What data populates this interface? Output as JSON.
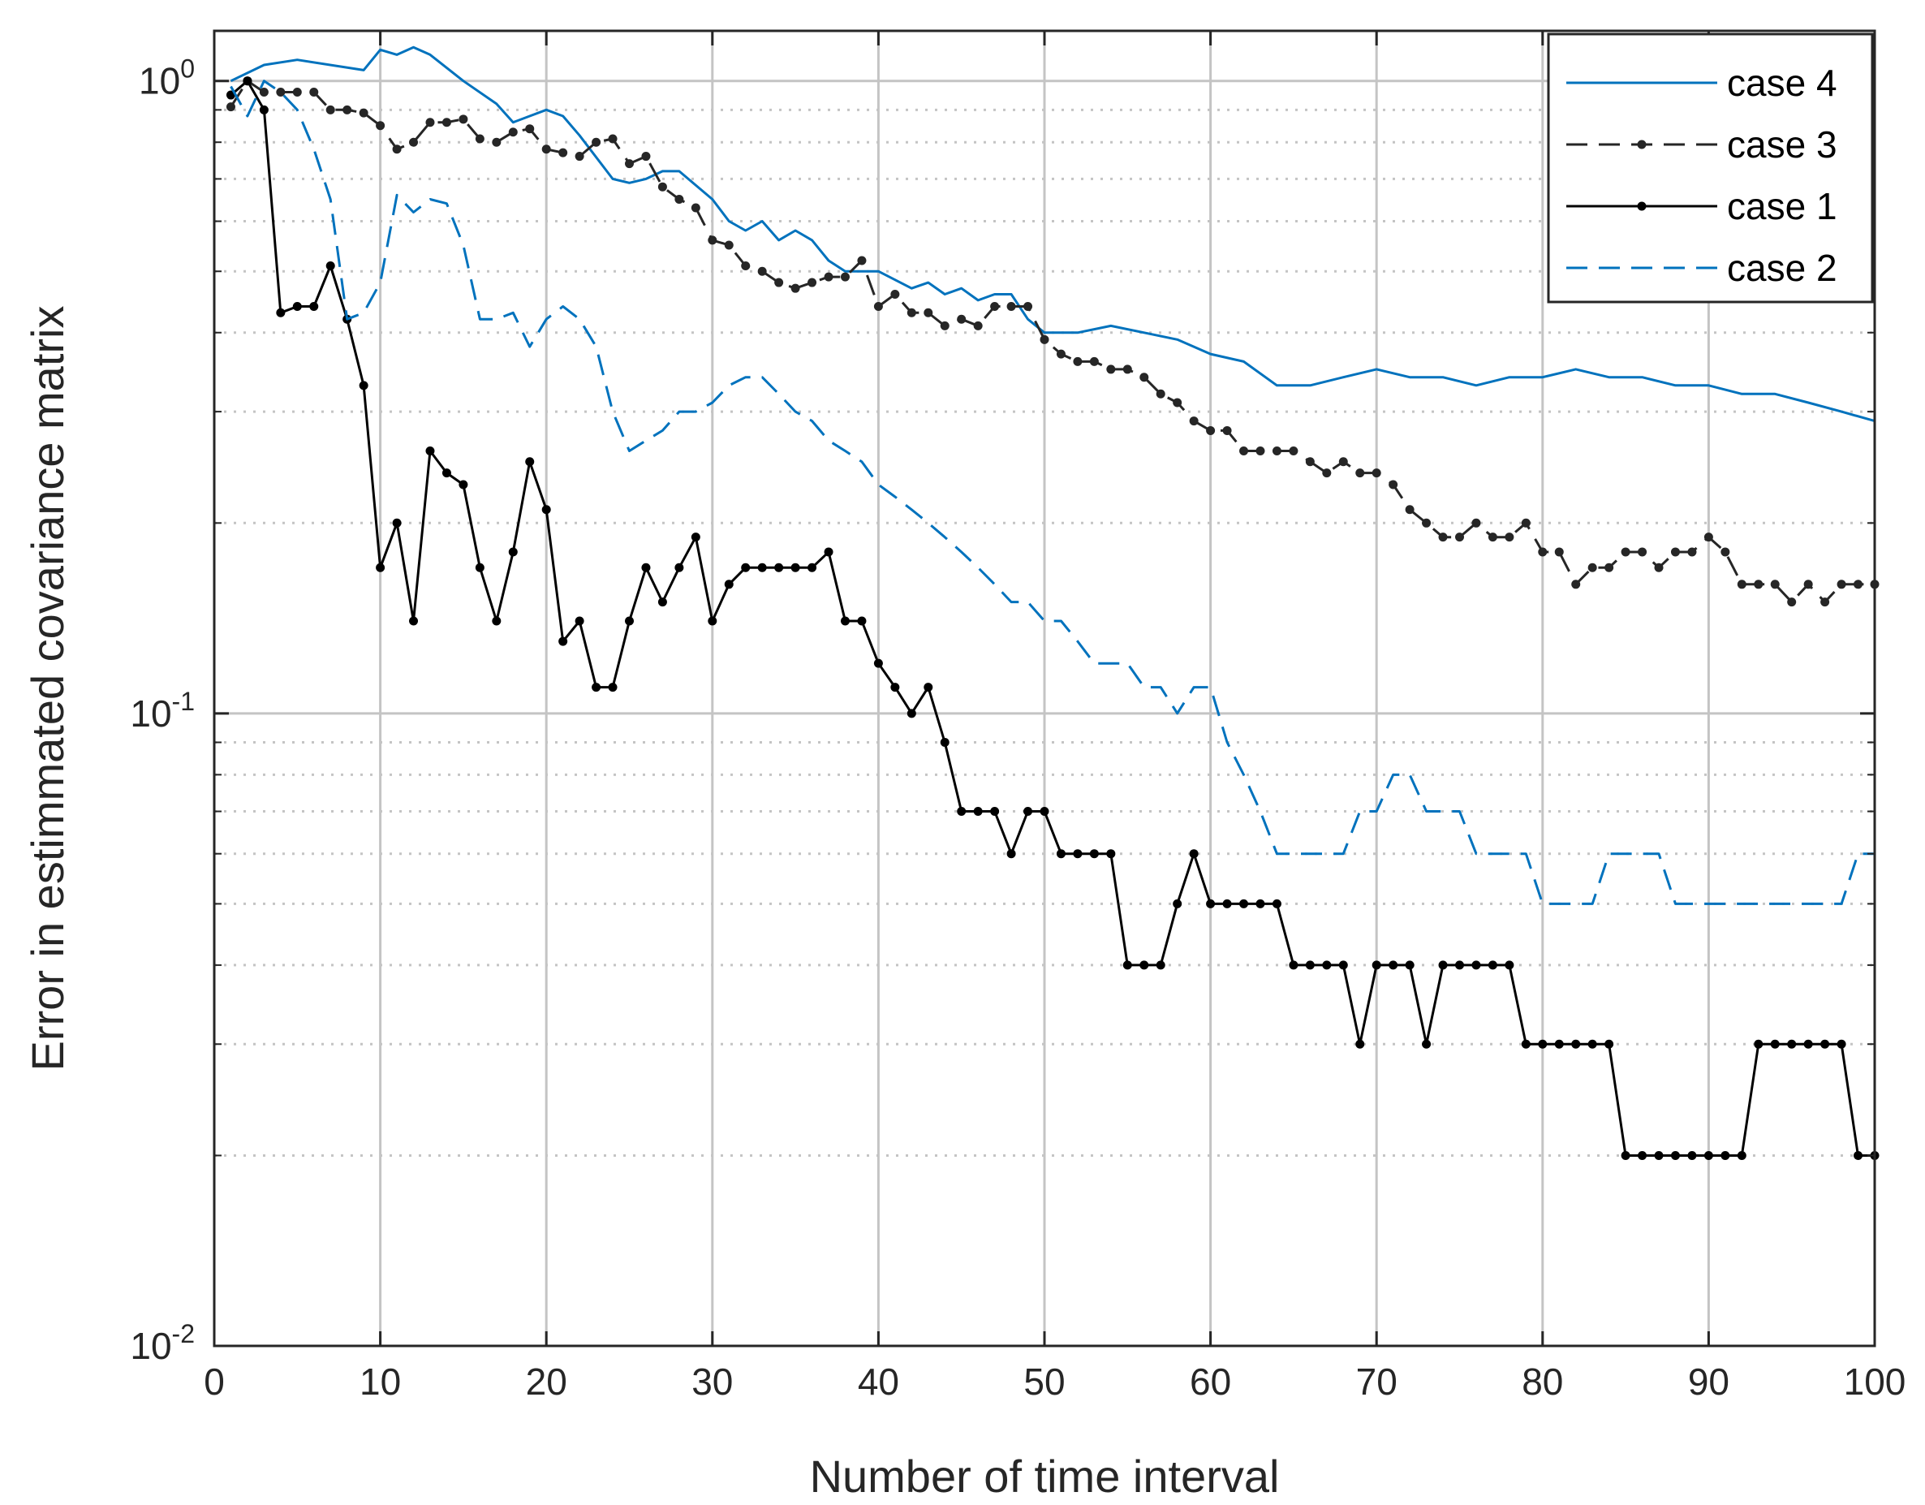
{
  "chart_data": {
    "type": "line",
    "title": "",
    "xlabel": "Number of time interval",
    "ylabel": "Error in estimmated covariance matrix",
    "xlim": [
      0,
      100
    ],
    "ylim": [
      0.01,
      1.2
    ],
    "yscale": "log",
    "grid": true,
    "legend_position": "top-right",
    "x_ticks": [
      0,
      10,
      20,
      30,
      40,
      50,
      60,
      70,
      80,
      90,
      100
    ],
    "y_ticks": [
      {
        "value": 0.01,
        "base": "10",
        "exp": "-2"
      },
      {
        "value": 0.1,
        "base": "10",
        "exp": "-1"
      },
      {
        "value": 1,
        "base": "10",
        "exp": "0"
      }
    ],
    "series": [
      {
        "name": "case 4",
        "color": "#0072BD",
        "dash": "solid",
        "markers": false,
        "x": [
          1,
          3,
          5,
          9,
          10,
          11,
          12,
          13,
          15,
          17,
          18,
          19,
          20,
          21,
          22,
          24,
          25,
          26,
          27,
          28,
          30,
          31,
          32,
          33,
          34,
          35,
          36,
          37,
          38,
          39,
          40,
          42,
          43,
          44,
          45,
          46,
          47,
          48,
          49,
          50,
          52,
          54,
          56,
          58,
          60,
          62,
          64,
          66,
          68,
          70,
          72,
          74,
          76,
          78,
          80,
          82,
          84,
          86,
          88,
          90,
          92,
          94,
          96,
          98,
          100
        ],
        "y": [
          1.0,
          1.06,
          1.08,
          1.04,
          1.12,
          1.1,
          1.13,
          1.1,
          1.0,
          0.92,
          0.86,
          0.88,
          0.9,
          0.88,
          0.82,
          0.7,
          0.69,
          0.7,
          0.72,
          0.72,
          0.65,
          0.6,
          0.58,
          0.6,
          0.56,
          0.58,
          0.56,
          0.52,
          0.5,
          0.5,
          0.5,
          0.47,
          0.48,
          0.46,
          0.47,
          0.45,
          0.46,
          0.46,
          0.42,
          0.4,
          0.4,
          0.41,
          0.4,
          0.39,
          0.37,
          0.36,
          0.33,
          0.33,
          0.34,
          0.35,
          0.34,
          0.34,
          0.33,
          0.34,
          0.34,
          0.35,
          0.34,
          0.34,
          0.33,
          0.33,
          0.32,
          0.32,
          0.31,
          0.3,
          0.29
        ]
      },
      {
        "name": "case 3",
        "color": "#262626",
        "dash": "dashed",
        "markers": true,
        "x": [
          1,
          2,
          3,
          4,
          5,
          6,
          7,
          8,
          9,
          10,
          11,
          12,
          13,
          14,
          15,
          16,
          17,
          18,
          19,
          20,
          21,
          22,
          23,
          24,
          25,
          26,
          27,
          28,
          29,
          30,
          31,
          32,
          33,
          34,
          35,
          36,
          37,
          38,
          39,
          40,
          41,
          42,
          43,
          44,
          45,
          46,
          47,
          48,
          49,
          50,
          51,
          52,
          53,
          54,
          55,
          56,
          57,
          58,
          59,
          60,
          61,
          62,
          63,
          64,
          65,
          66,
          67,
          68,
          69,
          70,
          71,
          72,
          73,
          74,
          75,
          76,
          77,
          78,
          79,
          80,
          81,
          82,
          83,
          84,
          85,
          86,
          87,
          88,
          89,
          90,
          91,
          92,
          93,
          94,
          95,
          96,
          97,
          98,
          99,
          100
        ],
        "y": [
          0.91,
          1.0,
          0.96,
          0.96,
          0.96,
          0.96,
          0.9,
          0.9,
          0.89,
          0.85,
          0.78,
          0.8,
          0.86,
          0.86,
          0.87,
          0.81,
          0.8,
          0.83,
          0.84,
          0.78,
          0.77,
          0.76,
          0.8,
          0.81,
          0.74,
          0.76,
          0.68,
          0.65,
          0.63,
          0.56,
          0.55,
          0.51,
          0.5,
          0.48,
          0.47,
          0.48,
          0.49,
          0.49,
          0.52,
          0.44,
          0.46,
          0.43,
          0.43,
          0.41,
          0.42,
          0.41,
          0.44,
          0.44,
          0.44,
          0.39,
          0.37,
          0.36,
          0.36,
          0.35,
          0.35,
          0.34,
          0.32,
          0.31,
          0.29,
          0.28,
          0.28,
          0.26,
          0.26,
          0.26,
          0.26,
          0.25,
          0.24,
          0.25,
          0.24,
          0.24,
          0.23,
          0.21,
          0.2,
          0.19,
          0.19,
          0.2,
          0.19,
          0.19,
          0.2,
          0.18,
          0.18,
          0.16,
          0.17,
          0.17,
          0.18,
          0.18,
          0.17,
          0.18,
          0.18,
          0.19,
          0.18,
          0.16,
          0.16,
          0.16,
          0.15,
          0.16,
          0.15,
          0.16,
          0.16,
          0.16
        ]
      },
      {
        "name": "case 1",
        "color": "#000000",
        "dash": "solid",
        "markers": true,
        "x": [
          1,
          2,
          3,
          4,
          5,
          6,
          7,
          8,
          9,
          10,
          11,
          12,
          13,
          14,
          15,
          16,
          17,
          18,
          19,
          20,
          21,
          22,
          23,
          24,
          25,
          26,
          27,
          28,
          29,
          30,
          31,
          32,
          33,
          34,
          35,
          36,
          37,
          38,
          39,
          40,
          41,
          42,
          43,
          44,
          45,
          46,
          47,
          48,
          49,
          50,
          51,
          52,
          53,
          54,
          55,
          56,
          57,
          58,
          59,
          60,
          61,
          62,
          63,
          64,
          65,
          66,
          67,
          68,
          69,
          70,
          71,
          72,
          73,
          74,
          75,
          76,
          77,
          78,
          79,
          80,
          81,
          82,
          83,
          84,
          85,
          86,
          87,
          88,
          89,
          90,
          91,
          92,
          93,
          94,
          95,
          96,
          97,
          98,
          99,
          100
        ],
        "y": [
          0.95,
          1.0,
          0.9,
          0.43,
          0.44,
          0.44,
          0.51,
          0.42,
          0.33,
          0.17,
          0.2,
          0.14,
          0.26,
          0.24,
          0.23,
          0.17,
          0.14,
          0.18,
          0.25,
          0.21,
          0.13,
          0.14,
          0.11,
          0.11,
          0.14,
          0.17,
          0.15,
          0.17,
          0.19,
          0.14,
          0.16,
          0.17,
          0.17,
          0.17,
          0.17,
          0.17,
          0.18,
          0.14,
          0.14,
          0.12,
          0.11,
          0.1,
          0.11,
          0.09,
          0.07,
          0.07,
          0.07,
          0.06,
          0.07,
          0.07,
          0.06,
          0.06,
          0.06,
          0.06,
          0.04,
          0.04,
          0.04,
          0.05,
          0.06,
          0.05,
          0.05,
          0.05,
          0.05,
          0.05,
          0.04,
          0.04,
          0.04,
          0.04,
          0.03,
          0.04,
          0.04,
          0.04,
          0.03,
          0.04,
          0.04,
          0.04,
          0.04,
          0.04,
          0.03,
          0.03,
          0.03,
          0.03,
          0.03,
          0.03,
          0.02,
          0.02,
          0.02,
          0.02,
          0.02,
          0.02,
          0.02,
          0.02,
          0.03,
          0.03,
          0.03,
          0.03,
          0.03,
          0.03,
          0.02,
          0.02
        ]
      },
      {
        "name": "case 2",
        "color": "#0072BD",
        "dash": "dashed",
        "markers": false,
        "x": [
          1,
          2,
          3,
          4,
          5,
          6,
          7,
          8,
          9,
          10,
          11,
          12,
          13,
          14,
          15,
          16,
          17,
          18,
          19,
          20,
          21,
          22,
          23,
          24,
          25,
          26,
          27,
          28,
          29,
          30,
          31,
          32,
          33,
          34,
          35,
          36,
          37,
          38,
          39,
          40,
          41,
          42,
          43,
          44,
          45,
          46,
          47,
          48,
          49,
          50,
          51,
          52,
          53,
          54,
          55,
          56,
          57,
          58,
          59,
          60,
          61,
          62,
          63,
          64,
          65,
          66,
          67,
          68,
          69,
          70,
          71,
          72,
          73,
          74,
          75,
          76,
          77,
          78,
          79,
          80,
          81,
          82,
          83,
          84,
          85,
          86,
          87,
          88,
          89,
          90,
          91,
          92,
          93,
          94,
          95,
          96,
          97,
          98,
          99,
          100
        ],
        "y": [
          0.98,
          0.88,
          1.0,
          0.96,
          0.9,
          0.78,
          0.65,
          0.42,
          0.43,
          0.48,
          0.66,
          0.62,
          0.65,
          0.64,
          0.55,
          0.42,
          0.42,
          0.43,
          0.38,
          0.42,
          0.44,
          0.42,
          0.38,
          0.3,
          0.26,
          0.27,
          0.28,
          0.3,
          0.3,
          0.31,
          0.33,
          0.34,
          0.34,
          0.32,
          0.3,
          0.29,
          0.27,
          0.26,
          0.25,
          0.23,
          0.22,
          0.21,
          0.2,
          0.19,
          0.18,
          0.17,
          0.16,
          0.15,
          0.15,
          0.14,
          0.14,
          0.13,
          0.12,
          0.12,
          0.12,
          0.11,
          0.11,
          0.1,
          0.11,
          0.11,
          0.09,
          0.08,
          0.07,
          0.06,
          0.06,
          0.06,
          0.06,
          0.06,
          0.07,
          0.07,
          0.08,
          0.08,
          0.07,
          0.07,
          0.07,
          0.06,
          0.06,
          0.06,
          0.06,
          0.05,
          0.05,
          0.05,
          0.05,
          0.06,
          0.06,
          0.06,
          0.06,
          0.05,
          0.05,
          0.05,
          0.05,
          0.05,
          0.05,
          0.05,
          0.05,
          0.05,
          0.05,
          0.05,
          0.06,
          0.06
        ]
      }
    ]
  }
}
